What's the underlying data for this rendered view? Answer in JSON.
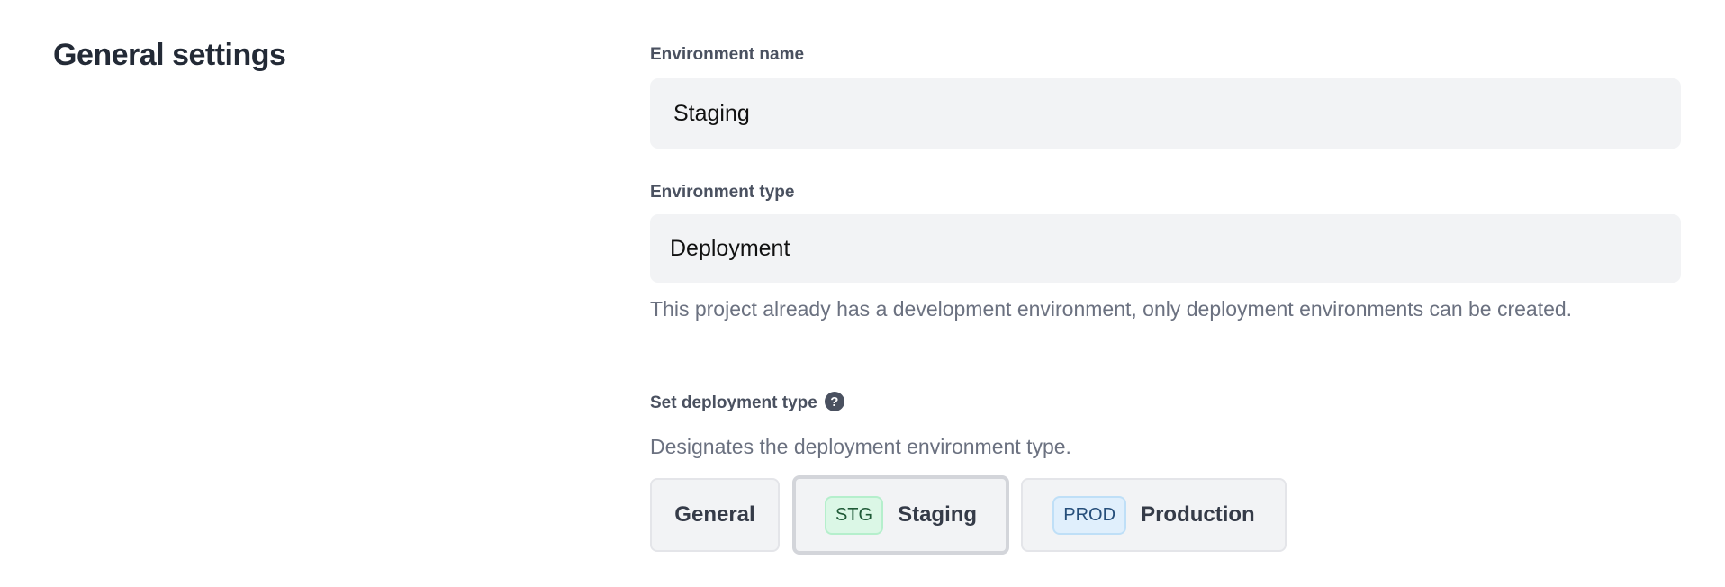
{
  "section": {
    "title": "General settings"
  },
  "environment_name": {
    "label": "Environment name",
    "value": "Staging"
  },
  "environment_type": {
    "label": "Environment type",
    "value": "Deployment",
    "help": "This project already has a development environment, only deployment environments can be created."
  },
  "deployment_type": {
    "label": "Set deployment type",
    "help_icon": "question-circle-icon",
    "description": "Designates the deployment environment type.",
    "selected": "Staging",
    "options": [
      {
        "label": "General"
      },
      {
        "badge": "STG",
        "label": "Staging",
        "badge_color": "#dbf7e6"
      },
      {
        "badge": "PROD",
        "label": "Production",
        "badge_color": "#e0effc"
      }
    ]
  }
}
